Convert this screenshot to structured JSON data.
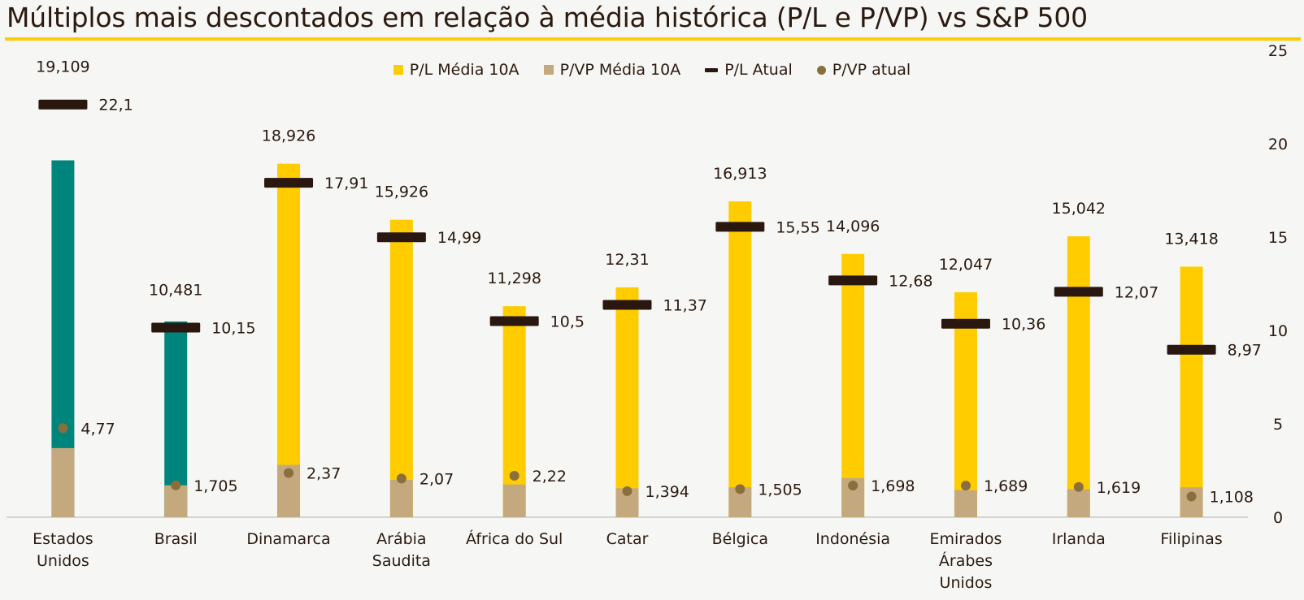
{
  "chart_data": {
    "type": "bar",
    "title": "Múltiplos mais descontados em relação à média histórica (P/L e P/VP) vs S&P 500",
    "legend_position": "top-center",
    "categories": [
      [
        "Estados",
        "Unidos"
      ],
      [
        "Brasil"
      ],
      [
        "Dinamarca"
      ],
      [
        "Arábia",
        "Saudita"
      ],
      [
        "África do Sul"
      ],
      [
        "Catar"
      ],
      [
        "Bélgica"
      ],
      [
        "Indonésia"
      ],
      [
        "Emirados",
        "Árabes",
        "Unidos"
      ],
      [
        "Irlanda"
      ],
      [
        "Filipinas"
      ]
    ],
    "y_axis": {
      "min": 0,
      "max": 25,
      "ticks": [
        "0",
        "5",
        "10",
        "15",
        "20",
        "25"
      ],
      "position": "right"
    },
    "grid": false,
    "series": [
      {
        "name": "P/L Média 10A",
        "kind": "bar",
        "color": "#ffcc00",
        "highlight_color": "#00857c",
        "highlight_indices": [
          0,
          1
        ],
        "values": [
          19.109,
          10.481,
          18.926,
          15.926,
          11.298,
          12.31,
          16.913,
          14.096,
          12.047,
          15.042,
          13.418
        ],
        "labels": [
          "19,109",
          "10,481",
          "18,926",
          "15,926",
          "11,298",
          "12,31",
          "16,913",
          "14,096",
          "12,047",
          "15,042",
          "13,418"
        ]
      },
      {
        "name": "P/VP Média 10A",
        "kind": "bar",
        "color": "#c4a97e",
        "values": [
          3.7,
          1.705,
          2.8,
          2.0,
          1.75,
          1.55,
          1.6,
          2.1,
          1.45,
          1.5,
          1.6
        ],
        "labels": []
      },
      {
        "name": "P/L Atual",
        "kind": "marker-line",
        "color": "#2a170f",
        "values": [
          22.1,
          10.15,
          17.91,
          14.99,
          10.5,
          11.37,
          15.55,
          12.68,
          10.36,
          12.07,
          8.97
        ],
        "labels": [
          "22,1",
          "10,15",
          "17,91",
          "14,99",
          "10,5",
          "11,37",
          "15,55",
          "12,68",
          "10,36",
          "12,07",
          "8,97"
        ]
      },
      {
        "name": "P/VP atual",
        "kind": "marker-dot",
        "color": "#8a6e3c",
        "values": [
          4.77,
          1.705,
          2.37,
          2.07,
          2.22,
          1.394,
          1.505,
          1.698,
          1.689,
          1.619,
          1.108
        ],
        "labels": [
          "4,77",
          "1,705",
          "2,37",
          "2,07",
          "2,22",
          "1,394",
          "1,505",
          "1,698",
          "1,689",
          "1,619",
          "1,108"
        ]
      }
    ]
  }
}
